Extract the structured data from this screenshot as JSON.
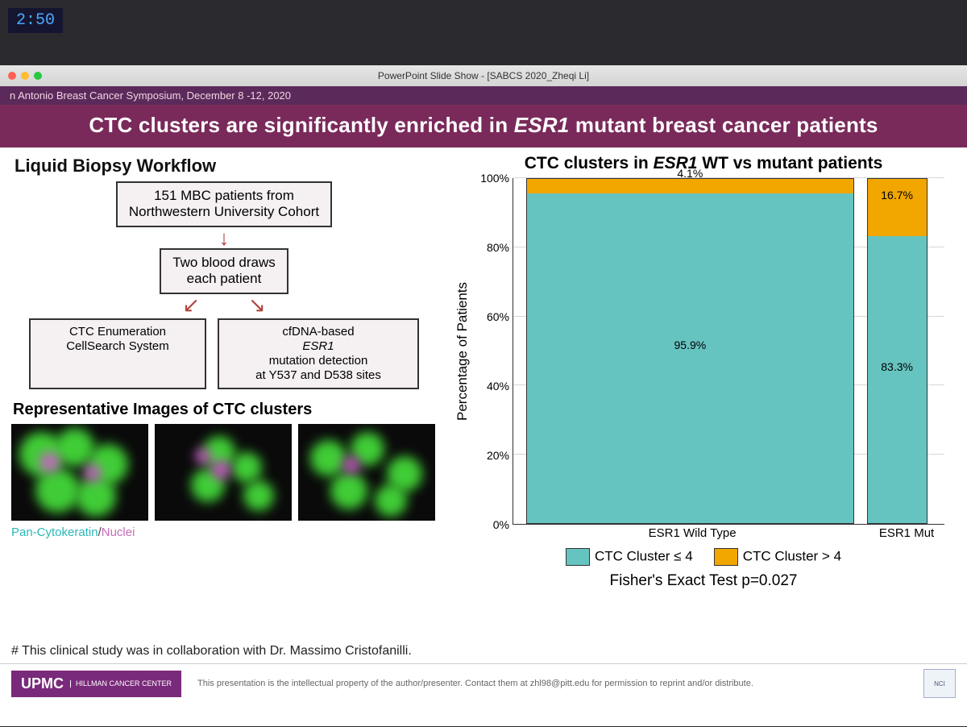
{
  "timestamp": "2:50",
  "window_title": "PowerPoint Slide Show - [SABCS 2020_Zheqi Li]",
  "conference_line": "n Antonio Breast Cancer Symposium, December 8 -12, 2020",
  "slide_title_pre": "CTC clusters are significantly enriched in ",
  "slide_title_ital": "ESR1",
  "slide_title_post": " mutant breast cancer patients",
  "workflow": {
    "heading": "Liquid Biopsy Workflow",
    "box1_l1": "151 MBC patients from",
    "box1_l2": "Northwestern University Cohort",
    "box2_l1": "Two blood draws",
    "box2_l2": "each patient",
    "box3_l1": "CTC Enumeration",
    "box3_l2": "CellSearch System",
    "box4_l1": "cfDNA-based",
    "box4_ital": "ESR1",
    "box4_l2": "mutation detection",
    "box4_l3": "at Y537 and D538 sites"
  },
  "rep_heading": "Representative Images of CTC clusters",
  "caption": {
    "pan": "Pan-Cytokeratin",
    "sep": "/",
    "nuc": "Nuclei"
  },
  "chart": {
    "title_pre": "CTC clusters in ",
    "title_ital": "ESR1",
    "title_post": " WT vs mutant patients",
    "ylabel": "Percentage of Patients",
    "yticks": [
      "0%",
      "20%",
      "40%",
      "60%",
      "80%",
      "100%"
    ],
    "ytick_pcts": [
      0,
      20,
      40,
      60,
      80,
      100
    ],
    "categories": [
      "ESR1 Wild Type",
      "ESR1 Mut"
    ],
    "bars": [
      {
        "left_pct": 3,
        "width_pct": 76,
        "low": 95.9,
        "low_label": "95.9%",
        "high_label": "4.1%"
      },
      {
        "left_pct": 82,
        "width_pct": 14,
        "low": 83.3,
        "low_label": "83.3%",
        "high_label": "16.7%"
      }
    ],
    "color_low": "#66c4c0",
    "color_high": "#f1a600",
    "axis_color": "#333333",
    "background": "#ffffff"
  },
  "legend": {
    "low": "CTC Cluster ≤ 4",
    "high": "CTC Cluster > 4"
  },
  "fisher": "Fisher's Exact Test p=0.027",
  "collab_note": "# This clinical study was in collaboration with Dr. Massimo Cristofanilli.",
  "footer": {
    "logo": "UPMC",
    "logo_sub": "HILLMAN\nCANCER CENTER",
    "disclaimer": "This presentation is the intellectual property of the author/presenter. Contact them at zhl98@pitt.edu for permission to reprint and/or distribute.",
    "nci": "NCI"
  },
  "micro": {
    "green": "#46e23b",
    "magenta": "#d15bcf",
    "bg": "#060606"
  }
}
